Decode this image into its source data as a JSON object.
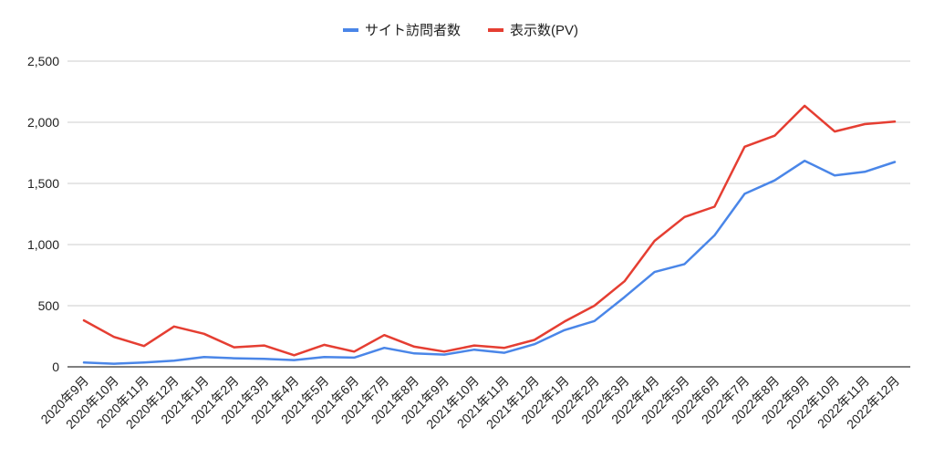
{
  "chart_data": {
    "type": "line",
    "title": "",
    "xlabel": "",
    "ylabel": "",
    "ylim": [
      0,
      2500
    ],
    "yticks": [
      0,
      500,
      1000,
      1500,
      2000,
      2500
    ],
    "ytick_labels": [
      "0",
      "500",
      "1,000",
      "1,500",
      "2,000",
      "2,500"
    ],
    "grid": true,
    "legend_position": "top-center",
    "categories": [
      "2020年9月",
      "2020年10月",
      "2020年11月",
      "2020年12月",
      "2021年1月",
      "2021年2月",
      "2021年3月",
      "2021年4月",
      "2021年5月",
      "2021年6月",
      "2021年7月",
      "2021年8月",
      "2021年9月",
      "2021年10月",
      "2021年11月",
      "2021年12月",
      "2022年1月",
      "2022年2月",
      "2022年3月",
      "2022年4月",
      "2022年5月",
      "2022年6月",
      "2022年7月",
      "2022年8月",
      "2022年9月",
      "2022年10月",
      "2022年11月",
      "2022年12月"
    ],
    "series": [
      {
        "name": "サイト訪問者数",
        "color": "#4a86e8",
        "values": [
          35,
          25,
          35,
          50,
          80,
          70,
          65,
          55,
          80,
          75,
          155,
          110,
          100,
          140,
          115,
          185,
          300,
          375,
          570,
          775,
          840,
          1075,
          1415,
          1525,
          1685,
          1565,
          1595,
          1675
        ]
      },
      {
        "name": "表示数(PV)",
        "color": "#e53e32",
        "values": [
          380,
          245,
          170,
          330,
          270,
          160,
          175,
          95,
          180,
          125,
          260,
          165,
          125,
          175,
          155,
          220,
          370,
          500,
          700,
          1030,
          1225,
          1310,
          1800,
          1890,
          2135,
          1925,
          1985,
          2005
        ]
      }
    ]
  }
}
